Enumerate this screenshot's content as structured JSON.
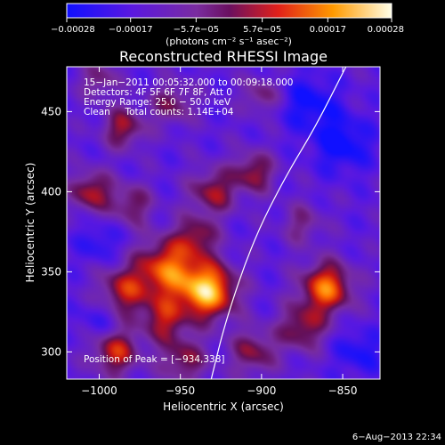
{
  "chart_data": {
    "type": "heatmap",
    "title": "Reconstructed RHESSI Image",
    "xlabel": "Heliocentric X (arcsec)",
    "ylabel": "Heliocentric Y (arcsec)",
    "xlim": [
      -1020,
      -827
    ],
    "ylim": [
      283,
      478
    ],
    "xticks": [
      -1000,
      -950,
      -900,
      -850
    ],
    "xtick_labels": [
      "−1000",
      "−950",
      "−900",
      "−850"
    ],
    "yticks": [
      300,
      350,
      400,
      450
    ],
    "ytick_labels": [
      "300",
      "350",
      "400",
      "450"
    ],
    "colorbar": {
      "min": -0.00028,
      "max": 0.00028,
      "ticks": [
        -0.00028,
        -0.00017,
        -5.7e-05,
        5.7e-05,
        0.00017,
        0.00028
      ],
      "tick_labels": [
        "−0.00028",
        "−0.00017",
        "−5.7e−05",
        "5.7e−05",
        "0.00017",
        "0.00028"
      ],
      "units_label": "(photons cm⁻² s⁻¹ asec⁻²)"
    },
    "annotations": [
      "15−Jan−2011 00:05:32.000 to 00:09:18.000",
      "Detectors: 4F 5F 6F 7F 8F, Att 0",
      "Energy Range: 25.0 − 50.0 keV",
      "Clean     Total counts: 1.14E+04"
    ],
    "peak_label": "Position of Peak = [−934,338]",
    "peak": [
      -934,
      338
    ],
    "limb_curve": [
      [
        -931,
        283
      ],
      [
        -922,
        320
      ],
      [
        -905,
        370
      ],
      [
        -885,
        410
      ],
      [
        -867,
        440
      ],
      [
        -848,
        478
      ]
    ],
    "sources": [
      {
        "x": -933,
        "y": 338,
        "amp": 1.0,
        "sigma": 12
      },
      {
        "x": -958,
        "y": 352,
        "amp": 0.75,
        "sigma": 13
      },
      {
        "x": -985,
        "y": 338,
        "amp": 0.55,
        "sigma": 11
      },
      {
        "x": -960,
        "y": 320,
        "amp": 0.5,
        "sigma": 10
      },
      {
        "x": -990,
        "y": 300,
        "amp": 0.6,
        "sigma": 10
      },
      {
        "x": -948,
        "y": 295,
        "amp": 0.45,
        "sigma": 10
      },
      {
        "x": -860,
        "y": 340,
        "amp": 0.8,
        "sigma": 11
      },
      {
        "x": -875,
        "y": 315,
        "amp": 0.5,
        "sigma": 10
      },
      {
        "x": -905,
        "y": 300,
        "amp": 0.45,
        "sigma": 10
      },
      {
        "x": -1005,
        "y": 400,
        "amp": 0.55,
        "sigma": 9
      },
      {
        "x": -980,
        "y": 392,
        "amp": 0.4,
        "sigma": 9
      },
      {
        "x": -930,
        "y": 400,
        "amp": 0.5,
        "sigma": 10
      },
      {
        "x": -905,
        "y": 412,
        "amp": 0.5,
        "sigma": 9
      },
      {
        "x": -985,
        "y": 440,
        "amp": 0.5,
        "sigma": 9
      },
      {
        "x": -955,
        "y": 455,
        "amp": 0.4,
        "sigma": 9
      },
      {
        "x": -1000,
        "y": 470,
        "amp": 0.35,
        "sigma": 8
      },
      {
        "x": -900,
        "y": 460,
        "amp": 0.35,
        "sigma": 8
      },
      {
        "x": -940,
        "y": 372,
        "amp": 0.45,
        "sigma": 9
      },
      {
        "x": -875,
        "y": 380,
        "amp": 0.3,
        "sigma": 9
      },
      {
        "x": -850,
        "y": 430,
        "amp": -0.4,
        "sigma": 12
      },
      {
        "x": -870,
        "y": 455,
        "amp": -0.35,
        "sigma": 12
      },
      {
        "x": -840,
        "y": 300,
        "amp": -0.3,
        "sigma": 10
      },
      {
        "x": -1000,
        "y": 320,
        "amp": -0.2,
        "sigma": 9
      },
      {
        "x": -1000,
        "y": 368,
        "amp": -0.25,
        "sigma": 9
      }
    ],
    "background": -0.25
  },
  "footer": {
    "timestamp": "6−Aug−2013 22:34"
  }
}
